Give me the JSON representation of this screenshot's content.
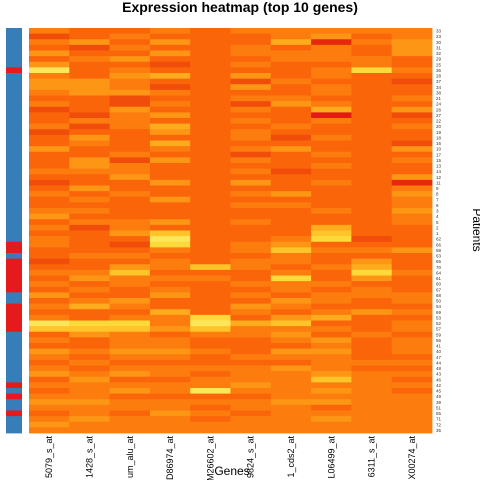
{
  "chart_data": {
    "type": "heatmap",
    "title": "Expression heatmap (top 10 genes)",
    "xlabel": "Genes",
    "ylabel": "Patients",
    "x_tick_labels": [
      "5079_s_at",
      "1428_s_at",
      "um_alu_at",
      "D86974_at",
      "M26602_at",
      "9824_s_at",
      "1_cds2_at",
      "L06499_at",
      "6311_s_at",
      "X00274_at"
    ],
    "row_labels": [
      "33",
      "23",
      "30",
      "31",
      "32",
      "29",
      "25",
      "36",
      "28",
      "37",
      "34",
      "38",
      "21",
      "24",
      "26",
      "27",
      "22",
      "20",
      "19",
      "18",
      "16",
      "10",
      "17",
      "15",
      "13",
      "14",
      "12",
      "11",
      "9",
      "8",
      "7",
      "6",
      "3",
      "4",
      "5",
      "2",
      "1",
      "62",
      "66",
      "58",
      "63",
      "65",
      "70",
      "64",
      "61",
      "60",
      "67",
      "68",
      "50",
      "54",
      "69",
      "53",
      "52",
      "57",
      "59",
      "56",
      "41",
      "40",
      "47",
      "44",
      "48",
      "43",
      "46",
      "42",
      "45",
      "49",
      "39",
      "51",
      "55",
      "71",
      "72",
      "35"
    ],
    "row_annotation": {
      "colors": {
        "1": "#377eb8",
        "2": "#e41a1c"
      },
      "values": [
        1,
        1,
        1,
        1,
        1,
        1,
        1,
        2,
        1,
        1,
        1,
        1,
        1,
        1,
        1,
        1,
        1,
        1,
        1,
        1,
        1,
        1,
        1,
        1,
        1,
        1,
        1,
        1,
        1,
        1,
        1,
        1,
        1,
        1,
        1,
        1,
        1,
        1,
        2,
        2,
        1,
        2,
        2,
        2,
        2,
        2,
        2,
        1,
        1,
        2,
        2,
        2,
        2,
        2,
        1,
        1,
        1,
        1,
        1,
        1,
        1,
        1,
        1,
        2,
        1,
        2,
        1,
        1,
        2,
        1,
        1,
        1
      ]
    },
    "color_scale": [
      "#ffffcc",
      "#fee65a",
      "#fed93a",
      "#fec42a",
      "#feab1e",
      "#fd9515",
      "#fc7d0e",
      "#fb650a",
      "#f14d0a",
      "#e8280c",
      "#e31a1c"
    ],
    "values": [
      [
        6,
        7,
        7,
        6,
        7,
        6,
        6,
        6,
        6,
        6
      ],
      [
        8,
        7,
        6,
        7,
        7,
        7,
        6,
        5,
        7,
        6
      ],
      [
        6,
        5,
        7,
        5,
        7,
        7,
        4,
        9,
        6,
        5
      ],
      [
        7,
        8,
        6,
        7,
        7,
        6,
        7,
        6,
        7,
        5
      ],
      [
        5,
        7,
        7,
        5,
        7,
        6,
        6,
        6,
        7,
        5
      ],
      [
        7,
        6,
        5,
        7,
        7,
        7,
        6,
        6,
        6,
        7
      ],
      [
        5,
        7,
        7,
        8,
        7,
        6,
        7,
        7,
        6,
        7
      ],
      [
        1,
        7,
        6,
        7,
        7,
        7,
        7,
        6,
        2,
        6
      ],
      [
        6,
        7,
        5,
        4,
        7,
        5,
        7,
        6,
        7,
        7
      ],
      [
        5,
        5,
        6,
        7,
        7,
        8,
        6,
        7,
        7,
        8
      ],
      [
        5,
        5,
        6,
        8,
        7,
        5,
        7,
        6,
        7,
        7
      ],
      [
        6,
        5,
        5,
        6,
        7,
        7,
        7,
        6,
        7,
        7
      ],
      [
        7,
        7,
        8,
        7,
        7,
        6,
        6,
        7,
        7,
        6
      ],
      [
        6,
        7,
        8,
        6,
        7,
        8,
        5,
        6,
        7,
        7
      ],
      [
        8,
        7,
        5,
        7,
        7,
        6,
        7,
        4,
        7,
        5
      ],
      [
        7,
        8,
        6,
        5,
        7,
        7,
        7,
        10,
        7,
        8
      ],
      [
        7,
        6,
        6,
        7,
        7,
        6,
        7,
        6,
        7,
        7
      ],
      [
        6,
        8,
        6,
        4,
        7,
        7,
        6,
        7,
        7,
        6
      ],
      [
        8,
        7,
        7,
        5,
        7,
        6,
        7,
        7,
        7,
        7
      ],
      [
        7,
        5,
        7,
        7,
        7,
        6,
        8,
        6,
        7,
        7
      ],
      [
        7,
        6,
        7,
        4,
        7,
        7,
        7,
        7,
        7,
        8
      ],
      [
        5,
        7,
        7,
        6,
        7,
        6,
        5,
        7,
        7,
        5
      ],
      [
        7,
        7,
        6,
        7,
        7,
        8,
        7,
        6,
        7,
        7
      ],
      [
        7,
        5,
        8,
        5,
        7,
        6,
        7,
        7,
        7,
        6
      ],
      [
        7,
        5,
        6,
        7,
        7,
        7,
        7,
        6,
        7,
        7
      ],
      [
        6,
        6,
        6,
        7,
        7,
        6,
        8,
        7,
        7,
        7
      ],
      [
        7,
        7,
        5,
        7,
        7,
        7,
        7,
        7,
        7,
        5
      ],
      [
        8,
        7,
        7,
        5,
        7,
        5,
        7,
        6,
        7,
        9
      ],
      [
        7,
        5,
        7,
        7,
        7,
        7,
        7,
        7,
        7,
        6
      ],
      [
        6,
        7,
        6,
        7,
        7,
        6,
        5,
        7,
        7,
        5
      ],
      [
        7,
        6,
        7,
        5,
        7,
        7,
        7,
        7,
        7,
        6
      ],
      [
        7,
        7,
        7,
        7,
        7,
        6,
        6,
        7,
        7,
        6
      ],
      [
        6,
        6,
        7,
        7,
        7,
        7,
        7,
        6,
        7,
        5
      ],
      [
        5,
        7,
        7,
        7,
        7,
        7,
        7,
        7,
        7,
        6
      ],
      [
        7,
        6,
        6,
        5,
        7,
        6,
        7,
        7,
        7,
        6
      ],
      [
        6,
        8,
        6,
        7,
        7,
        7,
        7,
        4,
        7,
        7
      ],
      [
        7,
        7,
        5,
        3,
        7,
        7,
        7,
        3,
        7,
        7
      ],
      [
        6,
        7,
        7,
        1,
        7,
        7,
        6,
        2,
        8,
        7
      ],
      [
        6,
        7,
        8,
        2,
        7,
        6,
        5,
        7,
        7,
        7
      ],
      [
        7,
        7,
        7,
        6,
        7,
        6,
        3,
        6,
        6,
        5
      ],
      [
        7,
        6,
        6,
        7,
        7,
        7,
        6,
        7,
        7,
        7
      ],
      [
        8,
        7,
        7,
        6,
        7,
        6,
        6,
        7,
        5,
        7
      ],
      [
        7,
        7,
        5,
        6,
        3,
        6,
        7,
        6,
        4,
        7
      ],
      [
        6,
        6,
        3,
        7,
        7,
        7,
        6,
        7,
        2,
        6
      ],
      [
        7,
        5,
        6,
        6,
        6,
        7,
        2,
        7,
        5,
        7
      ],
      [
        6,
        7,
        6,
        7,
        7,
        6,
        6,
        6,
        7,
        7
      ],
      [
        7,
        6,
        7,
        6,
        7,
        7,
        6,
        7,
        6,
        7
      ],
      [
        5,
        7,
        7,
        5,
        7,
        6,
        7,
        6,
        6,
        6
      ],
      [
        7,
        6,
        5,
        7,
        7,
        7,
        5,
        6,
        7,
        6
      ],
      [
        6,
        4,
        6,
        7,
        7,
        5,
        6,
        7,
        7,
        7
      ],
      [
        7,
        7,
        7,
        4,
        7,
        6,
        7,
        6,
        5,
        6
      ],
      [
        6,
        7,
        6,
        6,
        2,
        7,
        5,
        4,
        7,
        7
      ],
      [
        1,
        2,
        2,
        6,
        1,
        4,
        3,
        7,
        7,
        6
      ],
      [
        3,
        3,
        3,
        5,
        3,
        6,
        6,
        6,
        7,
        6
      ],
      [
        7,
        5,
        6,
        7,
        6,
        6,
        5,
        7,
        6,
        7
      ],
      [
        6,
        7,
        6,
        6,
        7,
        7,
        6,
        5,
        7,
        6
      ],
      [
        7,
        7,
        6,
        6,
        7,
        7,
        7,
        6,
        7,
        6
      ],
      [
        5,
        6,
        5,
        5,
        6,
        7,
        5,
        5,
        7,
        6
      ],
      [
        6,
        7,
        6,
        6,
        7,
        6,
        6,
        6,
        7,
        7
      ],
      [
        7,
        6,
        7,
        7,
        7,
        7,
        7,
        6,
        6,
        6
      ],
      [
        6,
        7,
        6,
        6,
        6,
        6,
        5,
        6,
        7,
        7
      ],
      [
        5,
        6,
        5,
        6,
        7,
        6,
        6,
        5,
        6,
        6
      ],
      [
        7,
        5,
        7,
        7,
        6,
        6,
        6,
        3,
        6,
        7
      ],
      [
        6,
        6,
        6,
        6,
        6,
        5,
        6,
        6,
        6,
        6
      ],
      [
        7,
        6,
        5,
        6,
        1,
        6,
        6,
        5,
        6,
        7
      ],
      [
        6,
        6,
        7,
        7,
        7,
        7,
        6,
        6,
        6,
        6
      ],
      [
        5,
        5,
        6,
        6,
        6,
        6,
        5,
        5,
        6,
        6
      ],
      [
        6,
        6,
        6,
        6,
        7,
        6,
        6,
        7,
        6,
        6
      ],
      [
        7,
        6,
        7,
        5,
        6,
        7,
        6,
        6,
        6,
        6
      ],
      [
        6,
        5,
        6,
        6,
        7,
        6,
        6,
        5,
        6,
        6
      ],
      [
        5,
        6,
        6,
        6,
        6,
        6,
        6,
        6,
        6,
        6
      ],
      [
        6,
        6,
        6,
        6,
        6,
        6,
        6,
        6,
        6,
        6
      ]
    ]
  }
}
